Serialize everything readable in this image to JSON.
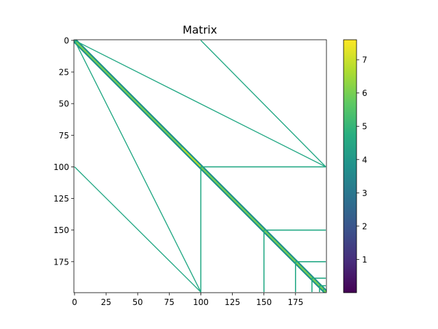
{
  "chart_data": {
    "type": "heatmap",
    "title": "Matrix",
    "xlabel": "",
    "ylabel": "",
    "size": [
      200,
      200
    ],
    "x_ticks": [
      0,
      25,
      50,
      75,
      100,
      125,
      150,
      175
    ],
    "y_ticks": [
      0,
      25,
      50,
      75,
      100,
      125,
      150,
      175
    ],
    "colorbar": {
      "colormap": "viridis",
      "vmin": 0.0,
      "vmax": 7.6,
      "ticks": [
        1,
        2,
        3,
        4,
        5,
        6,
        7
      ]
    },
    "nonzero_structures": [
      {
        "kind": "diagonal",
        "from": [
          0,
          0
        ],
        "to": [
          199,
          199
        ],
        "value_range": [
          4.5,
          6.5
        ]
      },
      {
        "kind": "line",
        "from": [
          0,
          0
        ],
        "to": [
          100,
          199
        ],
        "value": 5.0
      },
      {
        "kind": "line",
        "from": [
          0,
          0
        ],
        "to": [
          199,
          100
        ],
        "value": 5.0
      },
      {
        "kind": "line",
        "from": [
          0,
          100
        ],
        "to": [
          100,
          199
        ],
        "value": 4.5
      },
      {
        "kind": "line",
        "from": [
          100,
          0
        ],
        "to": [
          199,
          100
        ],
        "value": 4.5
      },
      {
        "kind": "row",
        "row": 100,
        "cols": [
          100,
          199
        ],
        "value": 4.8
      },
      {
        "kind": "column",
        "col": 100,
        "rows": [
          100,
          199
        ],
        "value": 4.8
      },
      {
        "kind": "row",
        "row": 150,
        "cols": [
          150,
          199
        ],
        "value": 4.8
      },
      {
        "kind": "column",
        "col": 150,
        "rows": [
          150,
          199
        ],
        "value": 4.8
      },
      {
        "kind": "row",
        "row": 175,
        "cols": [
          175,
          199
        ],
        "value": 4.8
      },
      {
        "kind": "column",
        "col": 175,
        "rows": [
          175,
          199
        ],
        "value": 4.8
      },
      {
        "kind": "row",
        "row": 188,
        "cols": [
          188,
          199
        ],
        "value": 4.8
      },
      {
        "kind": "column",
        "col": 188,
        "rows": [
          188,
          199
        ],
        "value": 4.8
      },
      {
        "kind": "row",
        "row": 194,
        "cols": [
          194,
          199
        ],
        "value": 4.8
      },
      {
        "kind": "column",
        "col": 194,
        "rows": [
          194,
          199
        ],
        "value": 4.8
      },
      {
        "kind": "row",
        "row": 197,
        "cols": [
          197,
          199
        ],
        "value": 4.8
      },
      {
        "kind": "column",
        "col": 197,
        "rows": [
          197,
          199
        ],
        "value": 4.8
      }
    ],
    "colors": {
      "line": "#22a884",
      "diagonal_dark": "#21918c",
      "diagonal_light": "#7ad151",
      "highlight": "#b5de2b"
    }
  }
}
